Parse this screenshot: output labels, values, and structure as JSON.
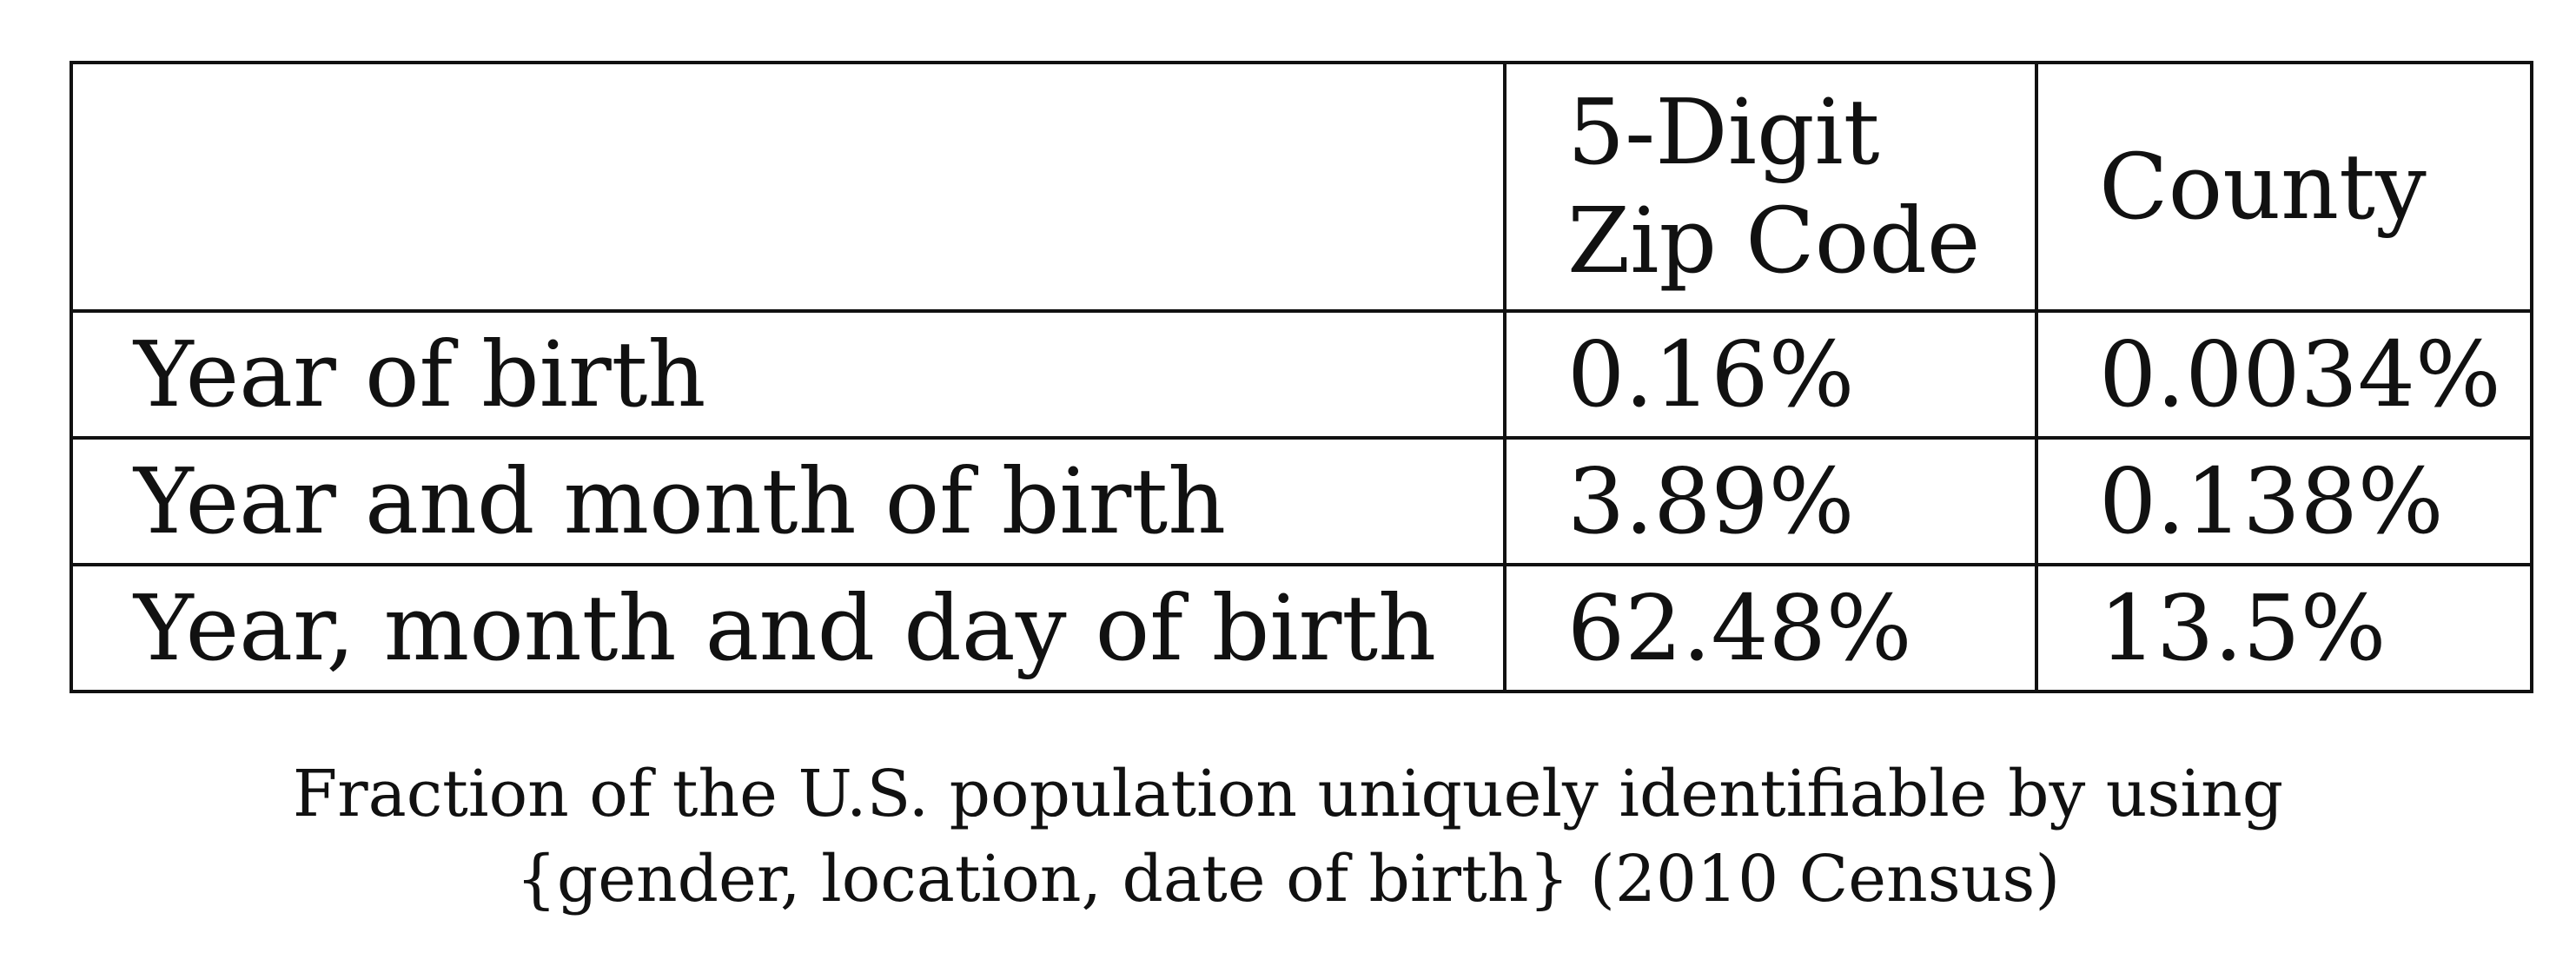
{
  "table": {
    "columns": [
      "",
      "5-Digit\nZip Code",
      "County"
    ],
    "header": {
      "col1": "",
      "col2_line1": "5-Digit",
      "col2_line2": "Zip Code",
      "col3": "County"
    },
    "rows": [
      {
        "label": "Year of birth",
        "zip": "0.16%",
        "county": "0.0034%"
      },
      {
        "label": "Year and month of birth",
        "zip": "3.89%",
        "county": "0.138%"
      },
      {
        "label": "Year, month and day of birth",
        "zip": "62.48%",
        "county": "13.5%"
      }
    ]
  },
  "caption": {
    "line1": "Fraction of the U.S. population uniquely identifiable by using",
    "line2": "{gender, location, date of birth} (2010 Census)"
  }
}
